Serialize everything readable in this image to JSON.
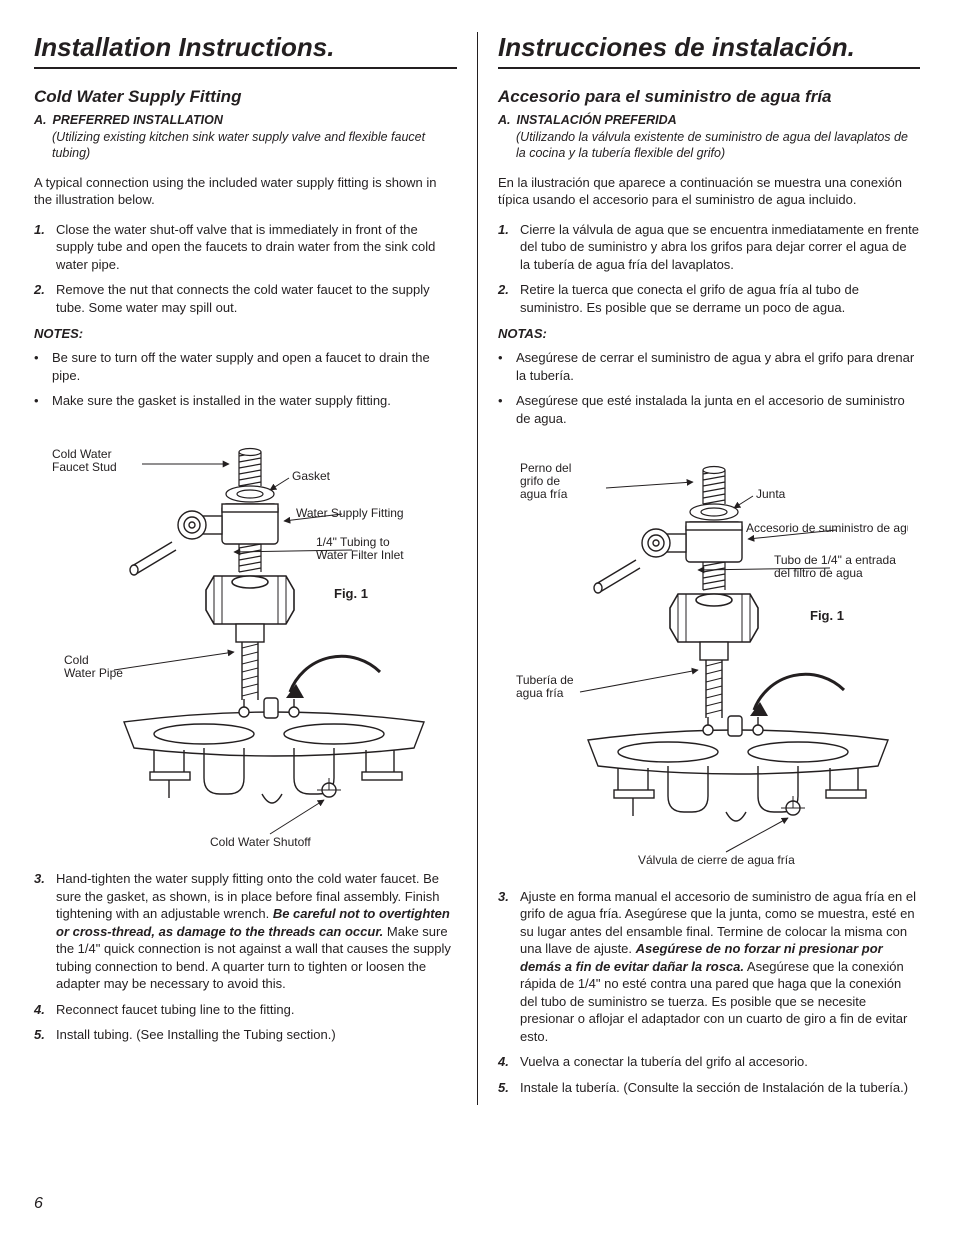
{
  "page_number": "6",
  "left": {
    "title": "Installation Instructions.",
    "subtitle": "Cold Water Supply Fitting",
    "pref_letter": "A.",
    "pref_label": "PREFERRED INSTALLATION",
    "pref_desc": "(Utilizing existing kitchen sink water supply valve and flexible faucet tubing)",
    "intro": "A typical connection using the included water supply fitting is shown in the illustration below.",
    "steps12": [
      "Close the water shut-off valve that is immediately in front of the supply tube and open the faucets to drain water from the sink cold water pipe.",
      "Remove the nut that connects the cold water faucet to the supply tube. Some water may spill out."
    ],
    "notes_h": "NOTES:",
    "notes": [
      "Be sure to turn off the water supply and open a faucet to drain the pipe.",
      "Make sure the gasket is installed in the water supply fitting."
    ],
    "fig": {
      "caption": "Fig. 1",
      "labels": {
        "faucet_stud": "Cold Water\nFaucet Stud",
        "gasket": "Gasket",
        "water_supply_fitting": "Water Supply Fitting",
        "tubing": "1/4\" Tubing to\nWater Filter Inlet",
        "cold_water_pipe": "Cold\nWater Pipe",
        "shutoff": "Cold Water Shutoff"
      }
    },
    "step3_pre": "Hand-tighten the water supply fitting onto the cold water faucet. Be sure the gasket, as shown, is in place before final assembly. Finish tightening with an adjustable wrench. ",
    "step3_bold": "Be careful not to overtighten or cross-thread, as damage to the threads can occur.",
    "step3_post": " Make sure the 1/4\" quick connection is not against a wall that causes the supply tubing connection to bend. A quarter turn to tighten or loosen the adapter may be necessary to avoid this.",
    "step4": "Reconnect faucet tubing line to the fitting.",
    "step5": "Install tubing. (See Installing the Tubing section.)"
  },
  "right": {
    "title": "Instrucciones de instalación.",
    "subtitle": "Accesorio para el suministro de agua fría",
    "pref_letter": "A.",
    "pref_label": "INSTALACIÓN PREFERIDA",
    "pref_desc": "(Utilizando la válvula existente de suministro de agua del lavaplatos de la cocina y la tubería flexible del grifo)",
    "intro": "En la ilustración que aparece a continuación se muestra una conexión típica usando el accesorio para el suministro de agua incluido.",
    "steps12": [
      "Cierre la válvula de agua que se encuentra inmediatamente en frente del tubo de suministro y abra los grifos para dejar correr el agua de la tubería de agua fría del lavaplatos.",
      "Retire la tuerca que conecta el grifo de agua fría al tubo de suministro. Es posible que se derrame un poco de agua."
    ],
    "notes_h": "NOTAS:",
    "notes": [
      "Asegúrese de cerrar el suministro de agua y abra el grifo para drenar la tubería.",
      "Asegúrese que esté instalada la junta en el accesorio de suministro de agua."
    ],
    "fig": {
      "caption": "Fig. 1",
      "labels": {
        "faucet_stud": "Perno del\ngrifo de\nagua fría",
        "gasket": "Junta",
        "water_supply_fitting": "Accesorio de suministro de agua",
        "tubing": "Tubo de 1/4\" a entrada\ndel filtro de agua",
        "cold_water_pipe": "Tubería de\nagua fría",
        "shutoff": "Válvula de cierre de agua fría"
      }
    },
    "step3_pre": "Ajuste en forma manual el accesorio de suministro de agua fría en el grifo de agua fría. Asegúrese que la junta, como se muestra, esté en su lugar antes del ensamble final. Termine de colocar la misma con una llave de ajuste. ",
    "step3_bold": "Asegúrese de no forzar ni presionar por demás a fin de evitar dañar la rosca.",
    "step3_post": " Asegúrese que la conexión rápida de 1/4\" no esté contra una pared que haga que la conexión del tubo de suministro se tuerza. Es posible que se necesite presionar o aflojar el adaptador con un cuarto de giro a fin de evitar esto.",
    "step4": "Vuelva a conectar la tubería del grifo al accesorio.",
    "step5": "Instale la tubería. (Consulte la sección de Instalación de la tubería.)"
  }
}
